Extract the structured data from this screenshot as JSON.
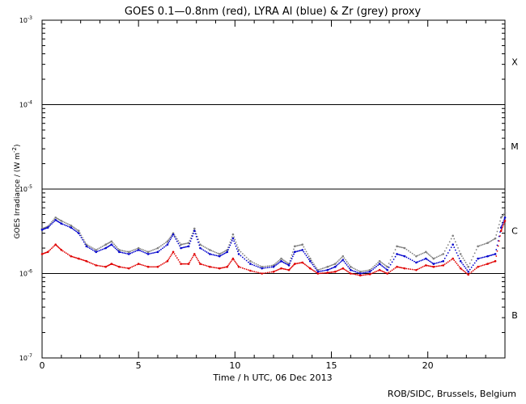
{
  "chart_data": {
    "type": "scatter",
    "title": "GOES 0.1—0.8nm (red), LYRA Al (blue) & Zr (grey) proxy",
    "xlabel": "Time / h UTC, 06 Dec 2013",
    "ylabel": "GOES Irradiance / (W m",
    "ylabel_sup": "-2",
    "ylabel_close": ")",
    "credit": "ROB/SIDC, Brussels, Belgium",
    "xlim": [
      0,
      24
    ],
    "ylim": [
      1e-07,
      0.001
    ],
    "yscale": "log",
    "x_ticks": [
      0,
      5,
      10,
      15,
      20
    ],
    "x_tick_labels": [
      "0",
      "5",
      "10",
      "15",
      "20"
    ],
    "y_tick_labels": [
      {
        "value": 0.001,
        "base": "10",
        "exp": "-3"
      },
      {
        "value": 0.0001,
        "base": "10",
        "exp": "-4"
      },
      {
        "value": 1e-05,
        "base": "10",
        "exp": "-5"
      },
      {
        "value": 1e-06,
        "base": "10",
        "exp": "-6"
      },
      {
        "value": 1e-07,
        "base": "10",
        "exp": "-7"
      }
    ],
    "class_lines": [
      0.0001,
      1e-05,
      1e-06
    ],
    "flare_classes": [
      {
        "label": "X",
        "value": 0.00032
      },
      {
        "label": "M",
        "value": 3.2e-05
      },
      {
        "label": "C",
        "value": 3.2e-06
      },
      {
        "label": "B",
        "value": 3.2e-07
      }
    ],
    "series": [
      {
        "name": "LYRA Zr proxy",
        "color": "#808080",
        "points": [
          [
            0,
            3.4e-06
          ],
          [
            0.3,
            3.6e-06
          ],
          [
            0.7,
            4.6e-06
          ],
          [
            1.0,
            4.2e-06
          ],
          [
            1.5,
            3.7e-06
          ],
          [
            1.9,
            3.2e-06
          ],
          [
            2.3,
            2.2e-06
          ],
          [
            2.8,
            1.9e-06
          ],
          [
            3.3,
            2.2e-06
          ],
          [
            3.6,
            2.4e-06
          ],
          [
            4.0,
            1.9e-06
          ],
          [
            4.5,
            1.8e-06
          ],
          [
            5.0,
            2e-06
          ],
          [
            5.5,
            1.8e-06
          ],
          [
            6.0,
            2e-06
          ],
          [
            6.5,
            2.4e-06
          ],
          [
            6.8,
            3e-06
          ],
          [
            7.2,
            2.2e-06
          ],
          [
            7.6,
            2.3e-06
          ],
          [
            7.9,
            3.4e-06
          ],
          [
            8.2,
            2.2e-06
          ],
          [
            8.7,
            1.9e-06
          ],
          [
            9.2,
            1.7e-06
          ],
          [
            9.6,
            1.9e-06
          ],
          [
            9.9,
            2.9e-06
          ],
          [
            10.2,
            1.9e-06
          ],
          [
            10.8,
            1.4e-06
          ],
          [
            11.4,
            1.2e-06
          ],
          [
            12.0,
            1.25e-06
          ],
          [
            12.4,
            1.5e-06
          ],
          [
            12.8,
            1.3e-06
          ],
          [
            13.1,
            2.1e-06
          ],
          [
            13.5,
            2.2e-06
          ],
          [
            13.9,
            1.5e-06
          ],
          [
            14.3,
            1.1e-06
          ],
          [
            14.8,
            1.2e-06
          ],
          [
            15.2,
            1.3e-06
          ],
          [
            15.6,
            1.6e-06
          ],
          [
            16.0,
            1.2e-06
          ],
          [
            16.5,
            1.05e-06
          ],
          [
            17.0,
            1.1e-06
          ],
          [
            17.5,
            1.4e-06
          ],
          [
            17.9,
            1.2e-06
          ],
          [
            18.4,
            2.1e-06
          ],
          [
            18.8,
            2e-06
          ],
          [
            19.4,
            1.6e-06
          ],
          [
            19.9,
            1.8e-06
          ],
          [
            20.3,
            1.5e-06
          ],
          [
            20.8,
            1.7e-06
          ],
          [
            21.3,
            2.8e-06
          ],
          [
            21.7,
            1.7e-06
          ],
          [
            22.1,
            1.2e-06
          ],
          [
            22.6,
            2.1e-06
          ],
          [
            23.1,
            2.3e-06
          ],
          [
            23.5,
            2.6e-06
          ],
          [
            23.8,
            4.6e-06
          ],
          [
            24.0,
            5.2e-06
          ]
        ]
      },
      {
        "name": "LYRA Al proxy",
        "color": "#0000cc",
        "points": [
          [
            0,
            3.3e-06
          ],
          [
            0.3,
            3.5e-06
          ],
          [
            0.7,
            4.3e-06
          ],
          [
            1.0,
            3.9e-06
          ],
          [
            1.5,
            3.5e-06
          ],
          [
            1.9,
            3e-06
          ],
          [
            2.3,
            2.1e-06
          ],
          [
            2.8,
            1.8e-06
          ],
          [
            3.3,
            2e-06
          ],
          [
            3.6,
            2.2e-06
          ],
          [
            4.0,
            1.8e-06
          ],
          [
            4.5,
            1.7e-06
          ],
          [
            5.0,
            1.9e-06
          ],
          [
            5.5,
            1.7e-06
          ],
          [
            6.0,
            1.8e-06
          ],
          [
            6.5,
            2.2e-06
          ],
          [
            6.8,
            2.9e-06
          ],
          [
            7.2,
            2e-06
          ],
          [
            7.6,
            2.1e-06
          ],
          [
            7.9,
            3.2e-06
          ],
          [
            8.2,
            2e-06
          ],
          [
            8.7,
            1.7e-06
          ],
          [
            9.2,
            1.6e-06
          ],
          [
            9.6,
            1.8e-06
          ],
          [
            9.9,
            2.6e-06
          ],
          [
            10.2,
            1.7e-06
          ],
          [
            10.8,
            1.3e-06
          ],
          [
            11.4,
            1.15e-06
          ],
          [
            12.0,
            1.2e-06
          ],
          [
            12.4,
            1.4e-06
          ],
          [
            12.8,
            1.25e-06
          ],
          [
            13.1,
            1.8e-06
          ],
          [
            13.5,
            1.9e-06
          ],
          [
            13.9,
            1.4e-06
          ],
          [
            14.3,
            1.05e-06
          ],
          [
            14.8,
            1.1e-06
          ],
          [
            15.2,
            1.2e-06
          ],
          [
            15.6,
            1.45e-06
          ],
          [
            16.0,
            1.1e-06
          ],
          [
            16.5,
            1e-06
          ],
          [
            17.0,
            1.05e-06
          ],
          [
            17.5,
            1.3e-06
          ],
          [
            17.9,
            1.1e-06
          ],
          [
            18.4,
            1.7e-06
          ],
          [
            18.8,
            1.6e-06
          ],
          [
            19.4,
            1.35e-06
          ],
          [
            19.9,
            1.5e-06
          ],
          [
            20.3,
            1.3e-06
          ],
          [
            20.8,
            1.4e-06
          ],
          [
            21.3,
            2.2e-06
          ],
          [
            21.7,
            1.4e-06
          ],
          [
            22.1,
            1.05e-06
          ],
          [
            22.6,
            1.5e-06
          ],
          [
            23.1,
            1.6e-06
          ],
          [
            23.5,
            1.7e-06
          ],
          [
            23.8,
            3.5e-06
          ],
          [
            24.0,
            4.6e-06
          ]
        ]
      },
      {
        "name": "GOES 0.1-0.8nm",
        "color": "#e00000",
        "points": [
          [
            0,
            1.7e-06
          ],
          [
            0.3,
            1.8e-06
          ],
          [
            0.7,
            2.2e-06
          ],
          [
            1.0,
            1.9e-06
          ],
          [
            1.5,
            1.6e-06
          ],
          [
            1.9,
            1.5e-06
          ],
          [
            2.3,
            1.4e-06
          ],
          [
            2.8,
            1.25e-06
          ],
          [
            3.3,
            1.2e-06
          ],
          [
            3.6,
            1.3e-06
          ],
          [
            4.0,
            1.2e-06
          ],
          [
            4.5,
            1.15e-06
          ],
          [
            5.0,
            1.3e-06
          ],
          [
            5.5,
            1.2e-06
          ],
          [
            6.0,
            1.2e-06
          ],
          [
            6.5,
            1.4e-06
          ],
          [
            6.8,
            1.8e-06
          ],
          [
            7.2,
            1.3e-06
          ],
          [
            7.6,
            1.3e-06
          ],
          [
            7.9,
            1.7e-06
          ],
          [
            8.2,
            1.3e-06
          ],
          [
            8.7,
            1.2e-06
          ],
          [
            9.2,
            1.15e-06
          ],
          [
            9.6,
            1.2e-06
          ],
          [
            9.9,
            1.5e-06
          ],
          [
            10.2,
            1.2e-06
          ],
          [
            10.8,
            1.08e-06
          ],
          [
            11.4,
            1e-06
          ],
          [
            12.0,
            1.05e-06
          ],
          [
            12.4,
            1.15e-06
          ],
          [
            12.8,
            1.1e-06
          ],
          [
            13.1,
            1.3e-06
          ],
          [
            13.5,
            1.35e-06
          ],
          [
            13.9,
            1.15e-06
          ],
          [
            14.3,
            1e-06
          ],
          [
            14.8,
            1.02e-06
          ],
          [
            15.2,
            1.05e-06
          ],
          [
            15.6,
            1.15e-06
          ],
          [
            16.0,
            1e-06
          ],
          [
            16.5,
            9.5e-07
          ],
          [
            17.0,
            9.8e-07
          ],
          [
            17.5,
            1.1e-06
          ],
          [
            17.9,
            1e-06
          ],
          [
            18.4,
            1.2e-06
          ],
          [
            18.8,
            1.15e-06
          ],
          [
            19.4,
            1.1e-06
          ],
          [
            19.9,
            1.25e-06
          ],
          [
            20.3,
            1.2e-06
          ],
          [
            20.8,
            1.25e-06
          ],
          [
            21.3,
            1.5e-06
          ],
          [
            21.7,
            1.15e-06
          ],
          [
            22.1,
            9.7e-07
          ],
          [
            22.6,
            1.2e-06
          ],
          [
            23.1,
            1.3e-06
          ],
          [
            23.5,
            1.4e-06
          ],
          [
            23.8,
            3.2e-06
          ],
          [
            24.0,
            4.2e-06
          ]
        ]
      }
    ]
  }
}
